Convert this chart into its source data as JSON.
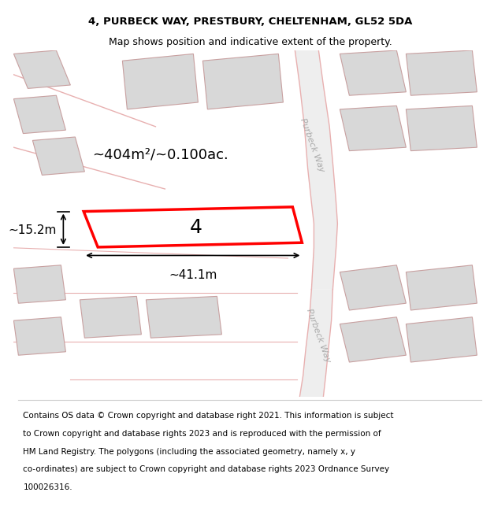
{
  "title_line1": "4, PURBECK WAY, PRESTBURY, CHELTENHAM, GL52 5DA",
  "title_line2": "Map shows position and indicative extent of the property.",
  "area_label": "~404m²/~0.100ac.",
  "number_label": "4",
  "dim_width": "~41.1m",
  "dim_height": "~15.2m",
  "road_label_top": "Purbeck Way",
  "road_label_bottom": "Purbeck Way",
  "bg_color": "#ffffff",
  "map_bg": "#f7f2f2",
  "road_fill": "#eeeeee",
  "building_fill": "#d8d8d8",
  "building_edge": "#c8a0a0",
  "road_line_color": "#e8b0b0",
  "highlight_color": "#ff0000",
  "highlight_fill": "#ffffff",
  "title_fontsize": 9.5,
  "footer_fontsize": 7.5,
  "label_fontsize": 13,
  "num_fontsize": 18,
  "dim_fontsize": 11,
  "road_label_fontsize": 8,
  "footer_lines": [
    "Contains OS data © Crown copyright and database right 2021. This information is subject",
    "to Crown copyright and database rights 2023 and is reproduced with the permission of",
    "HM Land Registry. The polygons (including the associated geometry, namely x, y",
    "co-ordinates) are subject to Crown copyright and database rights 2023 Ordnance Survey",
    "100026316."
  ]
}
